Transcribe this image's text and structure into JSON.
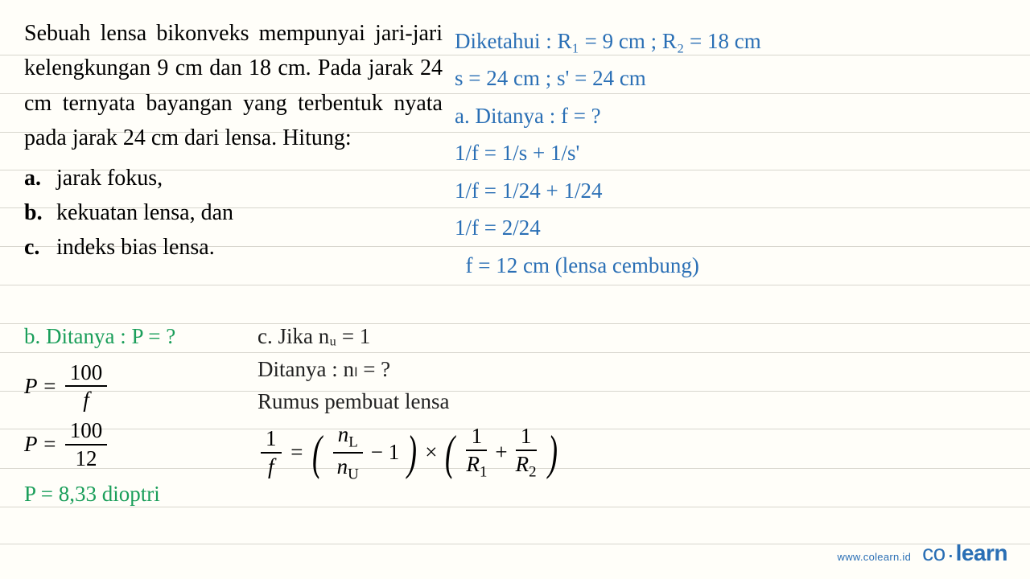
{
  "colors": {
    "background": "#fffef9",
    "rule_line": "#d8d6ce",
    "problem_text": "#000000",
    "solution_blue": "#2a6fb5",
    "solution_green": "#1a9e5a",
    "solution_black": "#222222",
    "formula_black": "#000000"
  },
  "typography": {
    "problem_font": "Times New Roman serif",
    "handwritten_font": "Comic Sans MS cursive",
    "problem_fontsize": 28,
    "solution_fontsize": 27,
    "footer_url_fontsize": 13,
    "footer_logo_fontsize": 28
  },
  "problem": {
    "body": "Sebuah lensa bikonveks mempunyai jari-jari kelengkungan 9 cm dan 18 cm. Pada jarak 24 cm ternyata bayangan yang terbentuk nyata pada jarak 24 cm dari lensa. Hitung:",
    "items": [
      {
        "label": "a.",
        "text": "jarak fokus,"
      },
      {
        "label": "b.",
        "text": "kekuatan lensa, dan"
      },
      {
        "label": "c.",
        "text": "indeks bias lensa."
      }
    ]
  },
  "solution_a": {
    "line1": "Diketahui : R₁ = 9 cm ; R₂ = 18 cm",
    "line2": "s = 24 cm ; s' = 24 cm",
    "line3": "a. Ditanya : f = ?",
    "line4": "1/f = 1/s + 1/s'",
    "line5": "1/f = 1/24 + 1/24",
    "line6": "1/f = 2/24",
    "line7": "  f = 12 cm (lensa cembung)"
  },
  "solution_b": {
    "title": "b. Ditanya : P = ?",
    "formula1": {
      "lhs": "P",
      "num": "100",
      "den": "f"
    },
    "formula2": {
      "lhs": "P",
      "num": "100",
      "den": "12"
    },
    "result": "P = 8,33 dioptri"
  },
  "solution_c": {
    "line1": "c. Jika nᵤ = 1",
    "line2": "Ditanya : nₗ = ?",
    "line3": "Rumus pembuat lensa",
    "lensmaker": {
      "lhs_num": "1",
      "lhs_den": "f",
      "first_num": "n",
      "first_num_sub": "L",
      "first_den": "n",
      "first_den_sub": "U",
      "minus1": "− 1",
      "times": "×",
      "r1_num": "1",
      "r1_den": "R",
      "r1_sub": "1",
      "plus": "+",
      "r2_num": "1",
      "r2_den": "R",
      "r2_sub": "2"
    }
  },
  "ruled_line_positions": [
    68,
    116,
    164,
    211,
    258,
    306,
    354,
    402,
    438,
    486,
    533,
    582,
    630,
    676
  ],
  "footer": {
    "url": "www.colearn.id",
    "brand1": "co",
    "brand2": "learn"
  }
}
